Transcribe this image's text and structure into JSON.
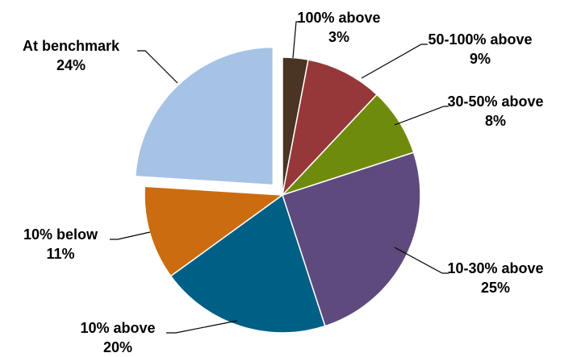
{
  "chart_data": {
    "type": "pie",
    "slices": [
      {
        "label": "100% above",
        "value": 3,
        "value_label": "3%",
        "color": "#4a3424",
        "exploded": false
      },
      {
        "label": "50-100% above",
        "value": 9,
        "value_label": "9%",
        "color": "#963839",
        "exploded": false
      },
      {
        "label": "30-50% above",
        "value": 8,
        "value_label": "8%",
        "color": "#6f8b0c",
        "exploded": false
      },
      {
        "label": "10-30% above",
        "value": 25,
        "value_label": "25%",
        "color": "#5e4a7d",
        "exploded": false
      },
      {
        "label": "10% above",
        "value": 20,
        "value_label": "20%",
        "color": "#005f84",
        "exploded": false
      },
      {
        "label": "10% below",
        "value": 11,
        "value_label": "11%",
        "color": "#cc6c10",
        "exploded": false
      },
      {
        "label": "At benchmark",
        "value": 24,
        "value_label": "24%",
        "color": "#a6c3e6",
        "exploded": true
      }
    ],
    "start_angle_deg": 0,
    "direction": "clockwise",
    "legend": "none"
  }
}
